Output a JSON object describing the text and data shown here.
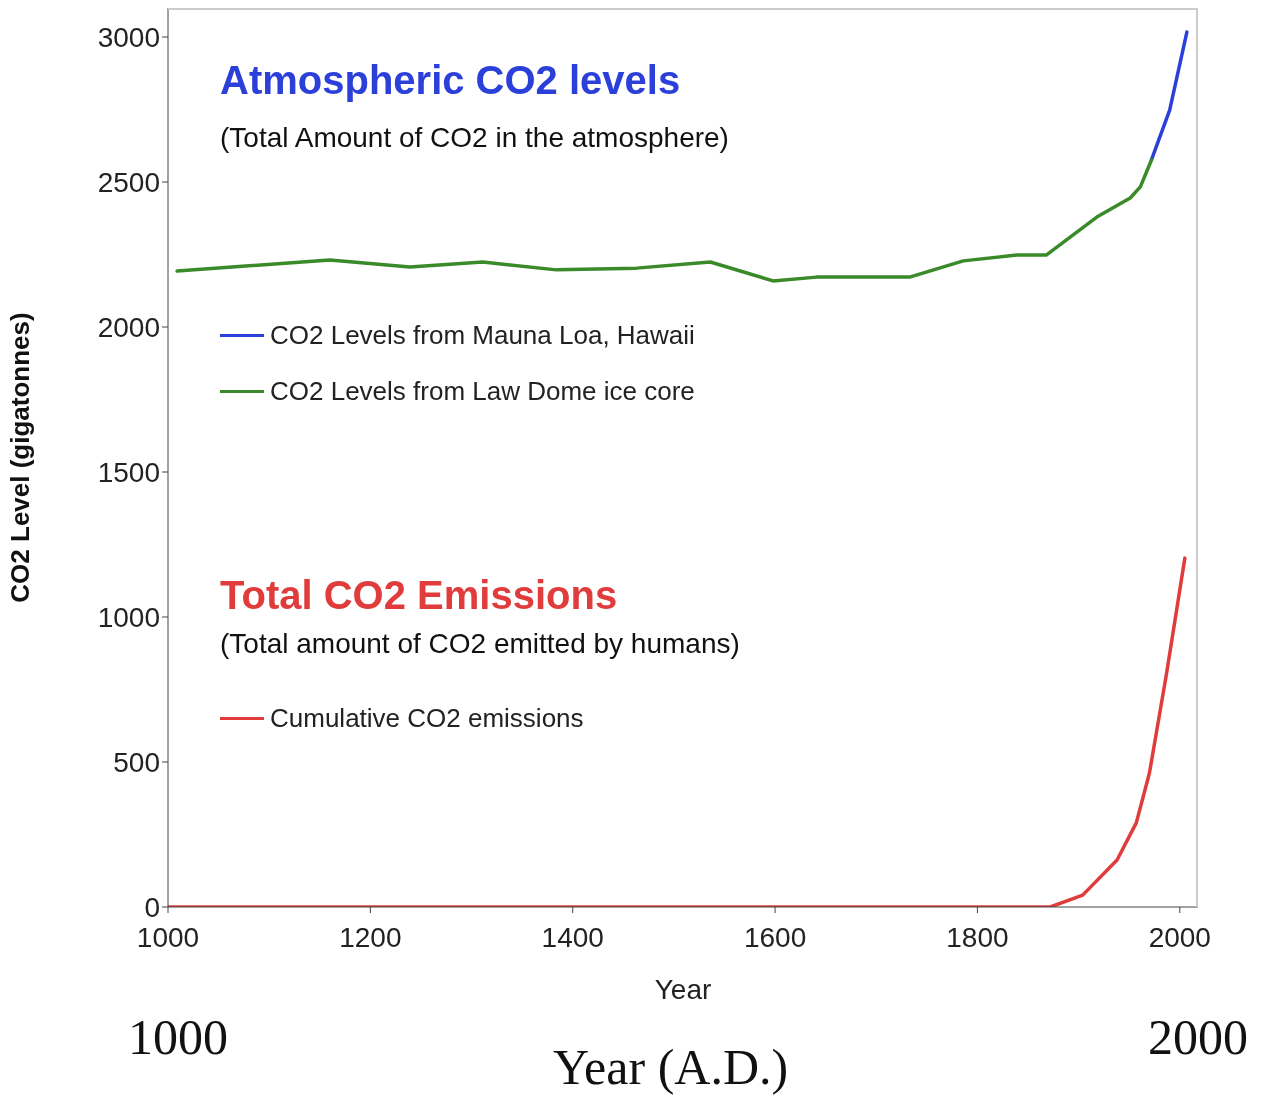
{
  "chart_data": {
    "type": "line",
    "xlabel": "Year",
    "ylabel": "CO2 Level (gigatonnes)",
    "xlim": [
      1000,
      2018
    ],
    "xticks": [
      1000,
      1200,
      1400,
      1600,
      1800,
      2000
    ],
    "ylim": [
      0,
      3100
    ],
    "yticks": [
      0,
      500,
      1000,
      1500,
      2000,
      2500,
      3000
    ],
    "legend": "left",
    "series": [
      {
        "name": "CO2 Levels from Mauna Loa, Hawaii",
        "color": "#2b3fd9",
        "x": [
          1972,
          1990,
          2007
        ],
        "values": [
          2576,
          2748,
          3017
        ]
      },
      {
        "name": "CO2 Levels from Law Dome ice core",
        "color": "#3a8a2a",
        "x": [
          1009,
          1160,
          1239,
          1311,
          1384,
          1463,
          1536,
          1598,
          1641,
          1733,
          1786,
          1839,
          1868,
          1918,
          1951,
          1961,
          1972
        ],
        "values": [
          2193,
          2231,
          2207,
          2224,
          2197,
          2203,
          2224,
          2159,
          2172,
          2172,
          2228,
          2248,
          2248,
          2379,
          2445,
          2483,
          2576
        ]
      },
      {
        "name": "Cumulative CO2 emissions",
        "color": "#e03c3c",
        "x": [
          1000,
          1872,
          1904,
          1938,
          1957,
          1970,
          1987,
          2005
        ],
        "values": [
          0,
          0,
          41,
          162,
          290,
          462,
          807,
          1203
        ]
      }
    ],
    "annotations": [
      "Atmospheric CO2 levels",
      "(Total Amount of CO2 in the atmosphere)",
      "Total CO2 Emissions",
      "(Total amount of CO2 emitted by humans)",
      "1000",
      "2000",
      "Year (A.D.)"
    ]
  }
}
